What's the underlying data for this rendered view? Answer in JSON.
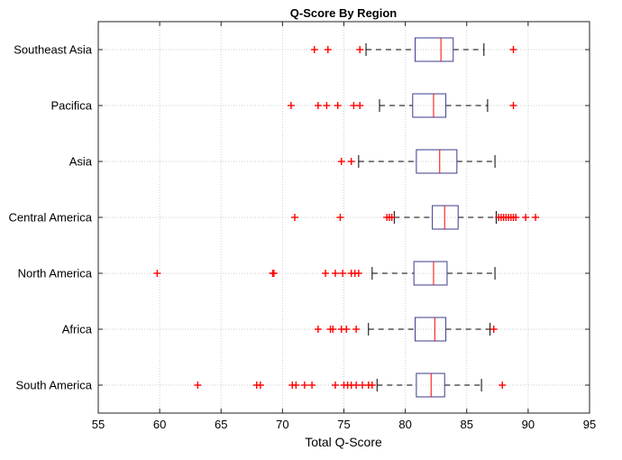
{
  "chart_data": {
    "type": "boxplot",
    "orientation": "horizontal",
    "title": "Q-Score By Region",
    "xlabel": "Total Q-Score",
    "ylabel": "",
    "xlim": [
      55,
      95
    ],
    "xticks": [
      55,
      60,
      65,
      70,
      75,
      80,
      85,
      90,
      95
    ],
    "grid": true,
    "colors": {
      "box": "#3b3b8f",
      "median": "#ff0000",
      "whisker": "#000000",
      "outlier": "#ff0000",
      "grid": "#cfcfcf"
    },
    "categories": [
      "Southeast Asia",
      "Pacifica",
      "Asia",
      "Central America",
      "North America",
      "Africa",
      "South America"
    ],
    "boxes": [
      {
        "category": "Southeast Asia",
        "whisker_low": 76.8,
        "q1": 80.8,
        "median": 82.9,
        "q3": 83.9,
        "whisker_high": 86.4,
        "outliers": [
          72.6,
          73.7,
          76.3,
          88.8
        ]
      },
      {
        "category": "Pacifica",
        "whisker_low": 77.9,
        "q1": 80.6,
        "median": 82.3,
        "q3": 83.3,
        "whisker_high": 86.7,
        "outliers": [
          70.7,
          72.9,
          73.6,
          74.5,
          75.8,
          76.3,
          88.8
        ]
      },
      {
        "category": "Asia",
        "whisker_low": 76.2,
        "q1": 80.9,
        "median": 82.8,
        "q3": 84.2,
        "whisker_high": 87.3,
        "outliers": [
          74.8,
          75.6
        ]
      },
      {
        "category": "Central America",
        "whisker_low": 79.1,
        "q1": 82.2,
        "median": 83.2,
        "q3": 84.3,
        "whisker_high": 87.4,
        "outliers": [
          71.0,
          74.7,
          78.5,
          78.7,
          78.9,
          87.6,
          87.8,
          88.0,
          88.2,
          88.4,
          88.6,
          88.8,
          89.0,
          89.8,
          90.6
        ]
      },
      {
        "category": "North America",
        "whisker_low": 77.3,
        "q1": 80.7,
        "median": 82.3,
        "q3": 83.4,
        "whisker_high": 87.3,
        "outliers": [
          59.8,
          69.2,
          69.3,
          73.5,
          74.3,
          74.9,
          75.6,
          75.9,
          76.2
        ]
      },
      {
        "category": "Africa",
        "whisker_low": 77.0,
        "q1": 80.8,
        "median": 82.4,
        "q3": 83.3,
        "whisker_high": 86.9,
        "outliers": [
          72.9,
          73.9,
          74.1,
          74.8,
          75.2,
          76.0,
          87.2
        ]
      },
      {
        "category": "South America",
        "whisker_low": 77.7,
        "q1": 80.9,
        "median": 82.1,
        "q3": 83.2,
        "whisker_high": 86.2,
        "outliers": [
          63.1,
          67.9,
          68.2,
          70.8,
          71.1,
          71.8,
          72.4,
          74.3,
          75.0,
          75.3,
          75.6,
          76.0,
          76.5,
          77.0,
          77.3,
          87.9
        ]
      }
    ]
  }
}
